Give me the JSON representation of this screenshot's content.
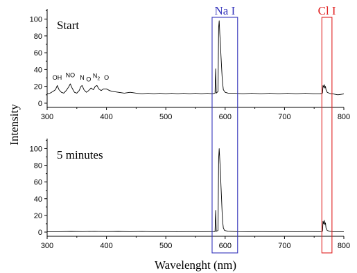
{
  "chart_data": [
    {
      "type": "line",
      "panel_label": "Start",
      "xlim": [
        300,
        800
      ],
      "ylim": [
        -5,
        112
      ],
      "x_ticks": [
        300,
        400,
        500,
        600,
        700,
        800
      ],
      "y_ticks": [
        0,
        20,
        40,
        60,
        80,
        100
      ],
      "x_tick_labels": [
        "300",
        "400",
        "500",
        "600",
        "700",
        "800"
      ],
      "y_tick_labels": [
        "0",
        "20",
        "40",
        "60",
        "80",
        "100"
      ],
      "annotations": [
        {
          "text": "OH",
          "x": 317,
          "y": 28
        },
        {
          "text": "NO",
          "x": 339,
          "y": 31
        },
        {
          "text": "N",
          "x": 359,
          "y": 28
        },
        {
          "text": "O",
          "x": 370,
          "y": 26
        },
        {
          "text": "N",
          "x": 383,
          "y": 30,
          "sub": "2"
        },
        {
          "text": "O",
          "x": 400,
          "y": 28
        }
      ],
      "series": [
        {
          "color": "#000000",
          "points": [
            [
              300,
              11
            ],
            [
              305,
              12
            ],
            [
              310,
              14
            ],
            [
              314,
              16
            ],
            [
              317,
              21
            ],
            [
              320,
              16
            ],
            [
              324,
              13
            ],
            [
              328,
              12
            ],
            [
              332,
              15
            ],
            [
              336,
              19
            ],
            [
              339,
              23
            ],
            [
              342,
              18
            ],
            [
              346,
              13
            ],
            [
              350,
              12
            ],
            [
              354,
              15
            ],
            [
              357,
              20
            ],
            [
              359,
              21
            ],
            [
              362,
              16
            ],
            [
              366,
              13
            ],
            [
              370,
              15
            ],
            [
              374,
              18
            ],
            [
              378,
              16
            ],
            [
              381,
              20
            ],
            [
              384,
              21
            ],
            [
              387,
              17
            ],
            [
              391,
              15
            ],
            [
              395,
              17
            ],
            [
              400,
              17
            ],
            [
              405,
              15
            ],
            [
              410,
              14
            ],
            [
              420,
              13
            ],
            [
              430,
              12
            ],
            [
              440,
              13
            ],
            [
              450,
              12
            ],
            [
              460,
              11
            ],
            [
              470,
              12
            ],
            [
              480,
              11
            ],
            [
              490,
              12
            ],
            [
              500,
              11
            ],
            [
              510,
              12
            ],
            [
              520,
              11
            ],
            [
              530,
              12
            ],
            [
              540,
              11
            ],
            [
              550,
              12
            ],
            [
              560,
              11
            ],
            [
              570,
              12
            ],
            [
              578,
              11
            ],
            [
              583,
              12
            ],
            [
              584,
              41
            ],
            [
              585,
              12
            ],
            [
              588,
              14
            ],
            [
              589,
              90
            ],
            [
              590,
              98
            ],
            [
              591,
              82
            ],
            [
              592,
              70
            ],
            [
              593,
              56
            ],
            [
              594,
              42
            ],
            [
              595,
              30
            ],
            [
              596,
              22
            ],
            [
              597,
              16
            ],
            [
              600,
              13
            ],
            [
              605,
              12
            ],
            [
              615,
              12
            ],
            [
              630,
              11
            ],
            [
              645,
              12
            ],
            [
              660,
              11
            ],
            [
              675,
              12
            ],
            [
              690,
              11
            ],
            [
              705,
              12
            ],
            [
              720,
              11
            ],
            [
              735,
              12
            ],
            [
              750,
              11
            ],
            [
              760,
              11
            ],
            [
              764,
              12
            ],
            [
              765,
              21
            ],
            [
              766,
              19
            ],
            [
              767,
              22
            ],
            [
              768,
              18
            ],
            [
              769,
              20
            ],
            [
              770,
              16
            ],
            [
              772,
              13
            ],
            [
              775,
              12
            ],
            [
              778,
              11
            ],
            [
              782,
              11
            ],
            [
              790,
              10
            ],
            [
              800,
              11
            ]
          ]
        }
      ]
    },
    {
      "type": "line",
      "panel_label": "5 minutes",
      "xlim": [
        300,
        800
      ],
      "ylim": [
        -5,
        112
      ],
      "x_ticks": [
        300,
        400,
        500,
        600,
        700,
        800
      ],
      "y_ticks": [
        0,
        20,
        40,
        60,
        80,
        100
      ],
      "x_tick_labels": [
        "300",
        "400",
        "500",
        "600",
        "700",
        "800"
      ],
      "y_tick_labels": [
        "0",
        "20",
        "40",
        "60",
        "80",
        "100"
      ],
      "series": [
        {
          "color": "#000000",
          "points": [
            [
              300,
              0.5
            ],
            [
              320,
              0.5
            ],
            [
              340,
              0.8
            ],
            [
              360,
              0.6
            ],
            [
              380,
              0.9
            ],
            [
              400,
              0.6
            ],
            [
              420,
              0.8
            ],
            [
              440,
              0.5
            ],
            [
              460,
              0.7
            ],
            [
              480,
              0.5
            ],
            [
              500,
              0.6
            ],
            [
              520,
              0.5
            ],
            [
              540,
              0.6
            ],
            [
              560,
              0.5
            ],
            [
              575,
              0.6
            ],
            [
              583,
              0.6
            ],
            [
              584,
              26
            ],
            [
              585,
              1
            ],
            [
              588,
              2
            ],
            [
              589,
              88
            ],
            [
              590,
              100
            ],
            [
              591,
              86
            ],
            [
              592,
              72
            ],
            [
              593,
              55
            ],
            [
              594,
              38
            ],
            [
              595,
              22
            ],
            [
              596,
              11
            ],
            [
              597,
              5
            ],
            [
              599,
              2
            ],
            [
              605,
              1
            ],
            [
              620,
              0.6
            ],
            [
              640,
              0.5
            ],
            [
              660,
              0.6
            ],
            [
              680,
              0.5
            ],
            [
              700,
              0.6
            ],
            [
              720,
              0.5
            ],
            [
              740,
              0.6
            ],
            [
              760,
              0.5
            ],
            [
              764,
              1
            ],
            [
              765,
              13
            ],
            [
              766,
              10
            ],
            [
              767,
              14
            ],
            [
              768,
              9
            ],
            [
              769,
              11
            ],
            [
              770,
              5
            ],
            [
              772,
              2
            ],
            [
              776,
              1
            ],
            [
              782,
              0.5
            ],
            [
              790,
              0.5
            ],
            [
              800,
              0.5
            ]
          ]
        }
      ]
    }
  ],
  "shared_ylabel": "Intensity",
  "shared_xlabel": "Wavelenght (nm)",
  "highlight_boxes": [
    {
      "label": "Na I",
      "x_range": [
        578,
        621
      ],
      "color": "#3333bb"
    },
    {
      "label": "Cl I",
      "x_range": [
        763,
        780
      ],
      "color": "#e02020"
    }
  ]
}
